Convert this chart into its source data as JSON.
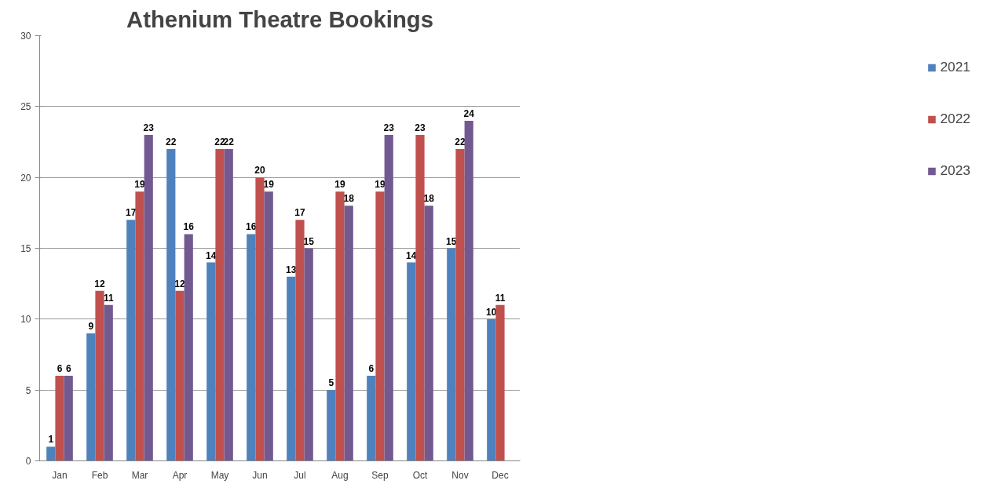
{
  "chart_data": {
    "type": "bar",
    "title": "Athenium Theatre Bookings",
    "categories": [
      "Jan",
      "Feb",
      "Mar",
      "Apr",
      "May",
      "Jun",
      "Jul",
      "Aug",
      "Sep",
      "Oct",
      "Nov",
      "Dec"
    ],
    "series": [
      {
        "name": "2021",
        "color": "#4f81bd",
        "values": [
          1,
          9,
          17,
          22,
          14,
          16,
          13,
          5,
          6,
          14,
          15,
          10
        ]
      },
      {
        "name": "2022",
        "color": "#c0504d",
        "values": [
          6,
          12,
          19,
          12,
          22,
          20,
          17,
          19,
          19,
          23,
          22,
          11
        ]
      },
      {
        "name": "2023",
        "color": "#725a91",
        "values": [
          6,
          11,
          23,
          16,
          22,
          19,
          15,
          18,
          23,
          18,
          24,
          null
        ]
      }
    ],
    "ylim": [
      0,
      30
    ],
    "yticks": [
      0,
      5,
      10,
      15,
      20,
      25,
      30
    ],
    "grid": "y",
    "legend": "right",
    "data_labels": true
  }
}
